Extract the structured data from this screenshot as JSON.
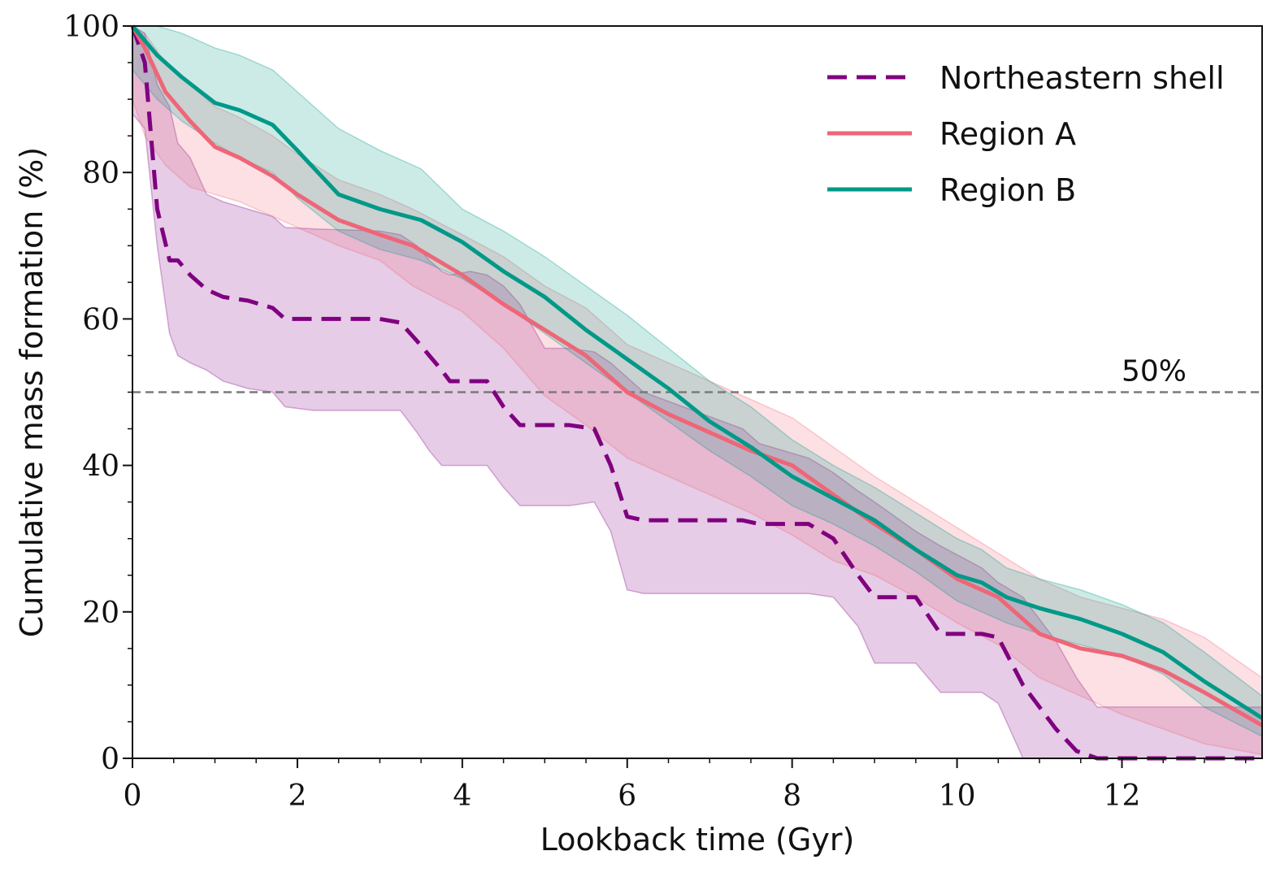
{
  "chart_data": {
    "type": "line",
    "title": "",
    "xlabel": "Lookback time (Gyr)",
    "ylabel": "Cumulative mass formation (%)",
    "xlim": [
      0,
      13.7
    ],
    "ylim": [
      0,
      100
    ],
    "xticks": [
      0,
      2,
      4,
      6,
      8,
      10,
      12
    ],
    "yticks": [
      0,
      20,
      40,
      60,
      80,
      100
    ],
    "reference_line": {
      "y": 50,
      "label": "50%",
      "color": "#7a7a7a"
    },
    "legend_position": "top-right",
    "series": [
      {
        "name": "Northeastern shell",
        "color": "#800080",
        "style": "dashed",
        "x": [
          0,
          0.15,
          0.3,
          0.45,
          0.55,
          0.7,
          0.9,
          1.1,
          1.4,
          1.7,
          1.85,
          2.2,
          3.0,
          3.25,
          3.45,
          3.6,
          3.75,
          3.85,
          4.1,
          4.3,
          4.5,
          4.7,
          5.0,
          5.3,
          5.6,
          5.8,
          6.0,
          6.2,
          7.4,
          7.6,
          8.2,
          8.5,
          8.8,
          9.0,
          9.5,
          9.8,
          10.3,
          10.5,
          10.8,
          11.2,
          11.45,
          11.7,
          13.7
        ],
        "y": [
          100,
          95,
          75,
          68,
          68,
          66,
          64,
          63,
          62.5,
          61.5,
          60,
          60,
          60,
          59.5,
          57,
          55,
          53,
          51.5,
          51.5,
          51.5,
          48,
          45.5,
          45.5,
          45.5,
          45,
          40,
          33,
          32.5,
          32.5,
          32,
          32,
          30,
          25,
          22,
          22,
          17,
          17,
          16.5,
          10,
          4,
          1,
          0,
          0
        ],
        "band_upper": [
          100,
          99,
          92,
          89,
          84,
          82,
          77,
          76,
          75,
          74,
          72.5,
          72.3,
          72,
          71.5,
          70,
          68,
          66.5,
          66,
          66.5,
          66,
          64.5,
          62,
          56,
          56,
          55.5,
          54,
          52,
          50,
          45,
          43,
          41,
          39,
          36.5,
          35,
          31,
          29,
          26,
          24,
          22,
          16,
          11,
          7,
          7
        ],
        "band_lower": [
          88,
          86,
          70,
          58,
          55,
          54,
          53,
          51.5,
          50.5,
          50,
          48,
          47.5,
          47.5,
          47.5,
          44.5,
          42,
          40,
          40,
          40,
          40,
          37,
          34.5,
          34.5,
          34.5,
          35,
          31,
          23,
          22.5,
          22.5,
          22.5,
          22.5,
          22,
          18,
          13,
          13,
          9,
          9,
          7.5,
          0,
          0,
          0,
          0,
          0
        ]
      },
      {
        "name": "Region A",
        "color": "#ee6677",
        "style": "solid",
        "x": [
          0,
          0.15,
          0.4,
          0.7,
          1.0,
          1.3,
          1.7,
          2.0,
          2.5,
          3.0,
          3.4,
          4.0,
          4.5,
          5.0,
          5.5,
          6.0,
          6.5,
          7.0,
          7.5,
          8.0,
          8.5,
          9.0,
          9.5,
          10.0,
          10.5,
          11.0,
          11.5,
          12.0,
          12.5,
          13.0,
          13.7
        ],
        "y": [
          100,
          97,
          91,
          87,
          83.5,
          82,
          79.5,
          77,
          73.5,
          71.5,
          70,
          66,
          62,
          58.5,
          55,
          50,
          47,
          44.5,
          42,
          40,
          36,
          32,
          28.5,
          24.5,
          22,
          17,
          15,
          14,
          12,
          9,
          4.5
        ],
        "band_upper": [
          100,
          99,
          95,
          92,
          89,
          87.5,
          85,
          82.5,
          79,
          77,
          75,
          71.5,
          68.5,
          64.5,
          61.5,
          56.5,
          54,
          51.5,
          49,
          46.5,
          42.5,
          38.5,
          35,
          31.5,
          28,
          24.5,
          22,
          20.5,
          19,
          16.5,
          11
        ],
        "band_lower": [
          90,
          85,
          81,
          78,
          77,
          76,
          74,
          72.5,
          70,
          68,
          64.5,
          61,
          56,
          49.5,
          45.5,
          41,
          38.5,
          36,
          33.5,
          30.5,
          27,
          25,
          22,
          18.5,
          15.5,
          11,
          8.5,
          6,
          4,
          2,
          0.5
        ]
      },
      {
        "name": "Region B",
        "color": "#009988",
        "style": "solid",
        "x": [
          0,
          0.3,
          0.6,
          1.0,
          1.3,
          1.7,
          2.0,
          2.5,
          3.0,
          3.5,
          4.0,
          4.5,
          5.0,
          5.5,
          6.0,
          6.5,
          7.0,
          7.5,
          8.0,
          8.5,
          9.0,
          9.5,
          10.0,
          10.3,
          10.6,
          11.0,
          11.5,
          12.0,
          12.5,
          13.0,
          13.7
        ],
        "y": [
          100,
          96,
          93,
          89.5,
          88.5,
          86.5,
          83,
          77,
          75,
          73.5,
          70.5,
          66.5,
          63,
          58.5,
          54.5,
          50.5,
          46,
          42.5,
          38.5,
          35.5,
          32.5,
          28.5,
          25,
          24,
          22,
          20.5,
          19,
          17,
          14.5,
          10.5,
          5.5
        ],
        "band_upper": [
          100,
          100,
          99,
          97,
          96,
          94,
          91,
          86,
          83,
          80.5,
          75,
          72,
          68.5,
          64.5,
          60.5,
          56,
          51.5,
          48,
          43.5,
          40,
          37,
          33.5,
          30,
          28.5,
          26,
          24.5,
          23,
          21,
          18.5,
          14.5,
          8.5
        ],
        "band_lower": [
          94,
          90,
          87,
          84,
          82,
          80,
          76.5,
          72,
          69.5,
          68,
          65.5,
          62,
          58,
          54,
          50,
          46,
          42,
          38.5,
          34.5,
          32,
          29,
          25.5,
          21.5,
          20,
          18.5,
          17,
          15.5,
          14,
          11.5,
          7,
          3
        ]
      }
    ]
  }
}
